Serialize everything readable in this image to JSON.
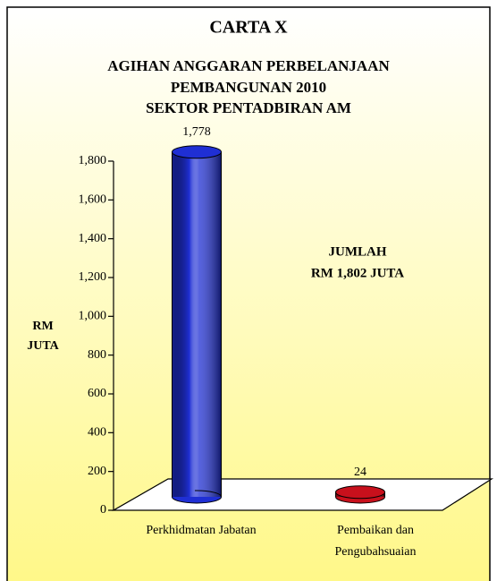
{
  "chart_data": {
    "type": "bar",
    "title": "CARTA X",
    "subtitle": [
      "AGIHAN ANGGARAN PERBELANJAAN",
      "PEMBANGUNAN 2010",
      "SEKTOR PENTADBIRAN AM"
    ],
    "y_label": "RM JUTA",
    "annotation": [
      "JUMLAH",
      "RM 1,802 JUTA"
    ],
    "categories": [
      "Perkhidmatan Jabatan",
      "Pembaikan dan Pengubahsuaian"
    ],
    "values": [
      1778,
      24
    ],
    "value_labels": [
      "1,778",
      "24"
    ],
    "colors": [
      "#1f2fd4",
      "#c8101c"
    ],
    "ylim": [
      0,
      1800
    ],
    "yticks": [
      0,
      200,
      400,
      600,
      800,
      {
        "value": 1000,
        "label": "1,000"
      },
      {
        "value": 1200,
        "label": "1,200"
      },
      {
        "value": 1400,
        "label": "1,400"
      },
      {
        "value": 1600,
        "label": "1,600"
      },
      {
        "value": 1800,
        "label": "1,800"
      }
    ]
  }
}
